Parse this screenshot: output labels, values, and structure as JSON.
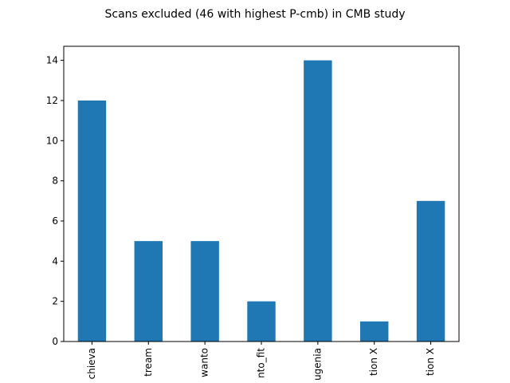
{
  "chart_data": {
    "type": "bar",
    "title": "Scans excluded (46 with highest P-cmb) in CMB study",
    "xlabel": "",
    "ylabel": "",
    "categories": [
      "chieva",
      "tream",
      "wanto",
      "nto_fit",
      "ugenia",
      "tion X",
      "tion X"
    ],
    "values": [
      12,
      5,
      5,
      2,
      14,
      1,
      7
    ],
    "yticks": [
      "0",
      "2",
      "4",
      "6",
      "8",
      "10",
      "12",
      "14"
    ],
    "ylim": [
      0,
      14.7
    ],
    "grid": false,
    "legend": "none",
    "bar_color": "#1f77b4"
  }
}
